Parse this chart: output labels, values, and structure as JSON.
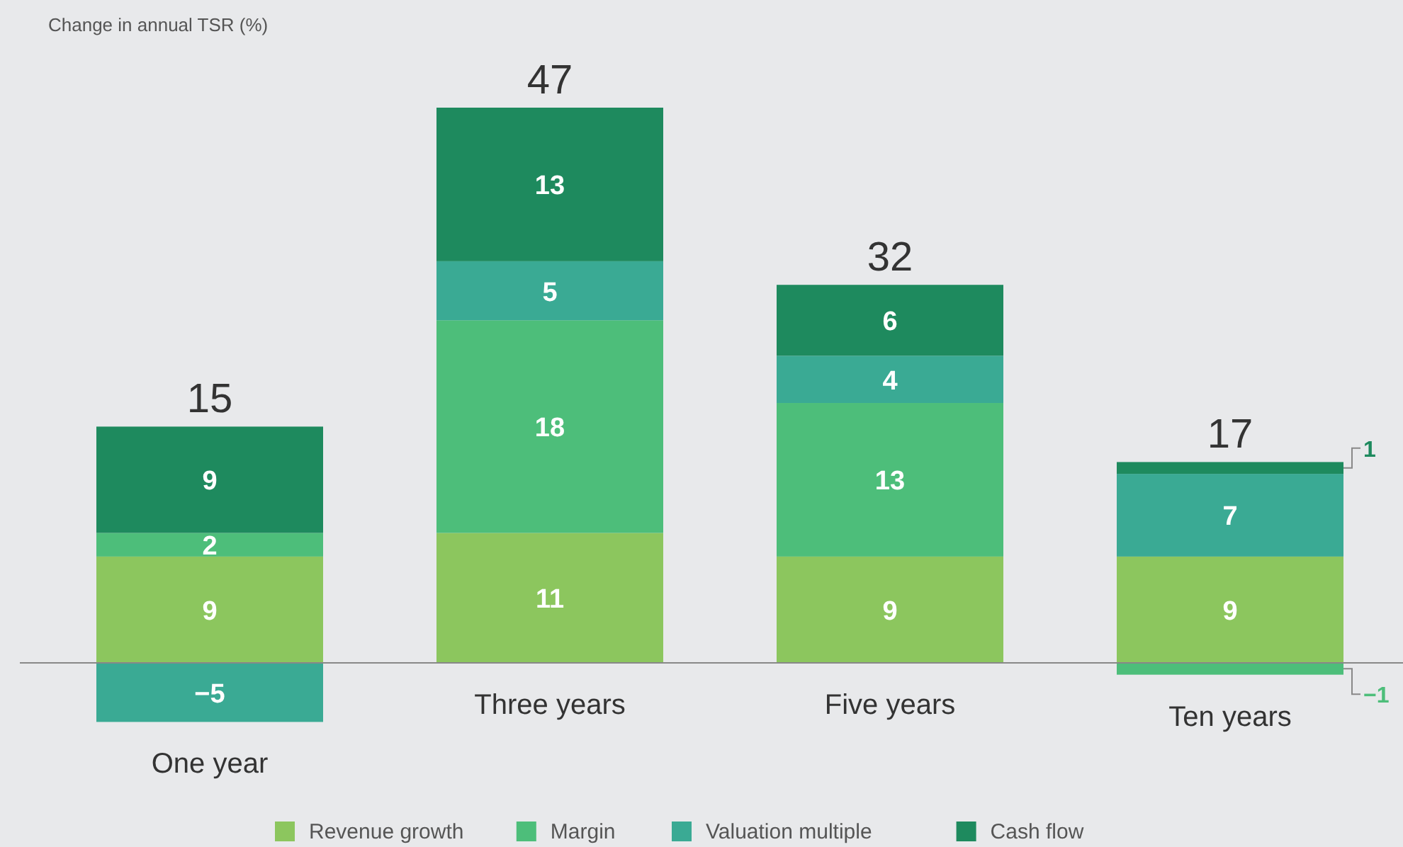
{
  "chart_data": {
    "type": "bar",
    "stacked": true,
    "ylabel": "Change in annual TSR (%)",
    "categories": [
      "One year",
      "Three years",
      "Five years",
      "Ten years"
    ],
    "series": [
      {
        "name": "Revenue growth",
        "color": "#8cc65e",
        "values": [
          9,
          11,
          9,
          9
        ]
      },
      {
        "name": "Margin",
        "color": "#4dbe7a",
        "values": [
          2,
          18,
          13,
          -1
        ]
      },
      {
        "name": "Valuation multiple",
        "color": "#3aaa94",
        "values": [
          -5,
          5,
          4,
          7
        ]
      },
      {
        "name": "Cash flow",
        "color": "#1e8a5e",
        "values": [
          9,
          13,
          6,
          1
        ]
      }
    ],
    "data_labels": true,
    "totals": [
      "15",
      "47",
      "32",
      "17"
    ],
    "legend": "bottom"
  }
}
